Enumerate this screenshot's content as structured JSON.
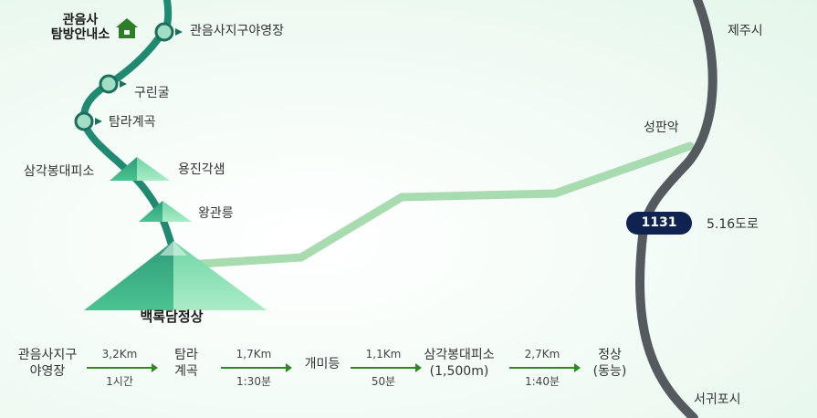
{
  "map": {
    "visitor_center": {
      "line1": "관음사",
      "line2": "탐방안내소"
    },
    "trail_points": {
      "campground": "관음사지구야영장",
      "cave": "구린굴",
      "valley": "탐라계곡",
      "shelter": "삼각봉대피소",
      "yongjin": "용진각샘",
      "wanggwan": "왕관릉",
      "summit": "백록담정상"
    },
    "places": {
      "jeju": "제주시",
      "seongpan": "성판악",
      "seogwipo": "서귀포시",
      "road_route": "5.16도로"
    },
    "road_badge": "1131",
    "colors": {
      "trail": "#1f8a70",
      "trail_dark": "#19705b",
      "road": "#555a5f",
      "side_trail": "#a9dbb0",
      "badge": "#0f2350",
      "arrow": "#2e8a1e"
    }
  },
  "legend": {
    "stops": [
      {
        "line1": "관음사지구",
        "line2": "야영장"
      },
      {
        "line1": "탐라",
        "line2": "계곡"
      },
      {
        "line1": "개미등",
        "line2": ""
      },
      {
        "line1": "삼각봉대피소",
        "line2": "(1,500m)"
      },
      {
        "line1": "정상",
        "line2": "(동능)"
      }
    ],
    "legs": [
      {
        "distance": "3,2Km",
        "time": "1시간"
      },
      {
        "distance": "1,7Km",
        "time": "1:30분"
      },
      {
        "distance": "1,1Km",
        "time": "50분"
      },
      {
        "distance": "2,7Km",
        "time": "1:40분"
      }
    ]
  }
}
